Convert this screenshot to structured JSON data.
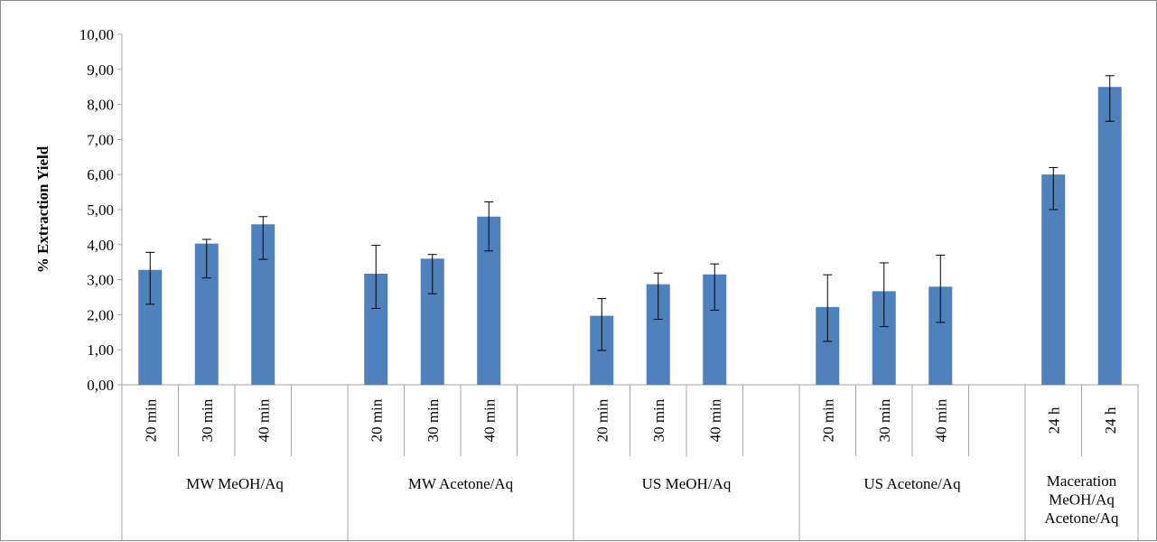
{
  "chart_data": {
    "type": "bar",
    "ylabel": "% Extraction Yield",
    "xlabel": "",
    "ylim": [
      0,
      10
    ],
    "ytick_step": 1,
    "ytick_labels": [
      "0,00",
      "1,00",
      "2,00",
      "3,00",
      "4,00",
      "5,00",
      "6,00",
      "7,00",
      "8,00",
      "9,00",
      "10,00"
    ],
    "grid": false,
    "legend": "none",
    "bar_color": "#4f81bd",
    "groups": [
      {
        "label_lines": [
          "MW MeOH/Aq"
        ],
        "slots": 4,
        "categories": [
          "20 min",
          "30 min",
          "40 min"
        ],
        "values": [
          3.28,
          4.03,
          4.58
        ],
        "error_upper": [
          3.78,
          4.15,
          4.8
        ],
        "error_lower": [
          2.3,
          3.05,
          3.58
        ]
      },
      {
        "label_lines": [
          "MW Acetone/Aq"
        ],
        "slots": 4,
        "categories": [
          "20 min",
          "30 min",
          "40 min"
        ],
        "values": [
          3.17,
          3.6,
          4.8
        ],
        "error_upper": [
          3.98,
          3.72,
          5.22
        ],
        "error_lower": [
          2.18,
          2.6,
          3.82
        ]
      },
      {
        "label_lines": [
          "US MeOH/Aq"
        ],
        "slots": 4,
        "categories": [
          "20 min",
          "30 min",
          "40 min"
        ],
        "values": [
          1.97,
          2.87,
          3.15
        ],
        "error_upper": [
          2.46,
          3.19,
          3.45
        ],
        "error_lower": [
          0.98,
          1.87,
          2.13
        ]
      },
      {
        "label_lines": [
          "US Acetone/Aq"
        ],
        "slots": 4,
        "categories": [
          "20 min",
          "30 min",
          "40 min"
        ],
        "values": [
          2.22,
          2.67,
          2.8
        ],
        "error_upper": [
          3.14,
          3.48,
          3.7
        ],
        "error_lower": [
          1.24,
          1.66,
          1.78
        ]
      },
      {
        "label_lines": [
          "Maceration",
          "MeOH/Aq",
          "Acetone/Aq"
        ],
        "slots": 2,
        "categories": [
          "24 h",
          "24 h"
        ],
        "values": [
          6.0,
          8.5
        ],
        "error_upper": [
          6.2,
          8.82
        ],
        "error_lower": [
          5.0,
          7.52
        ]
      }
    ]
  }
}
